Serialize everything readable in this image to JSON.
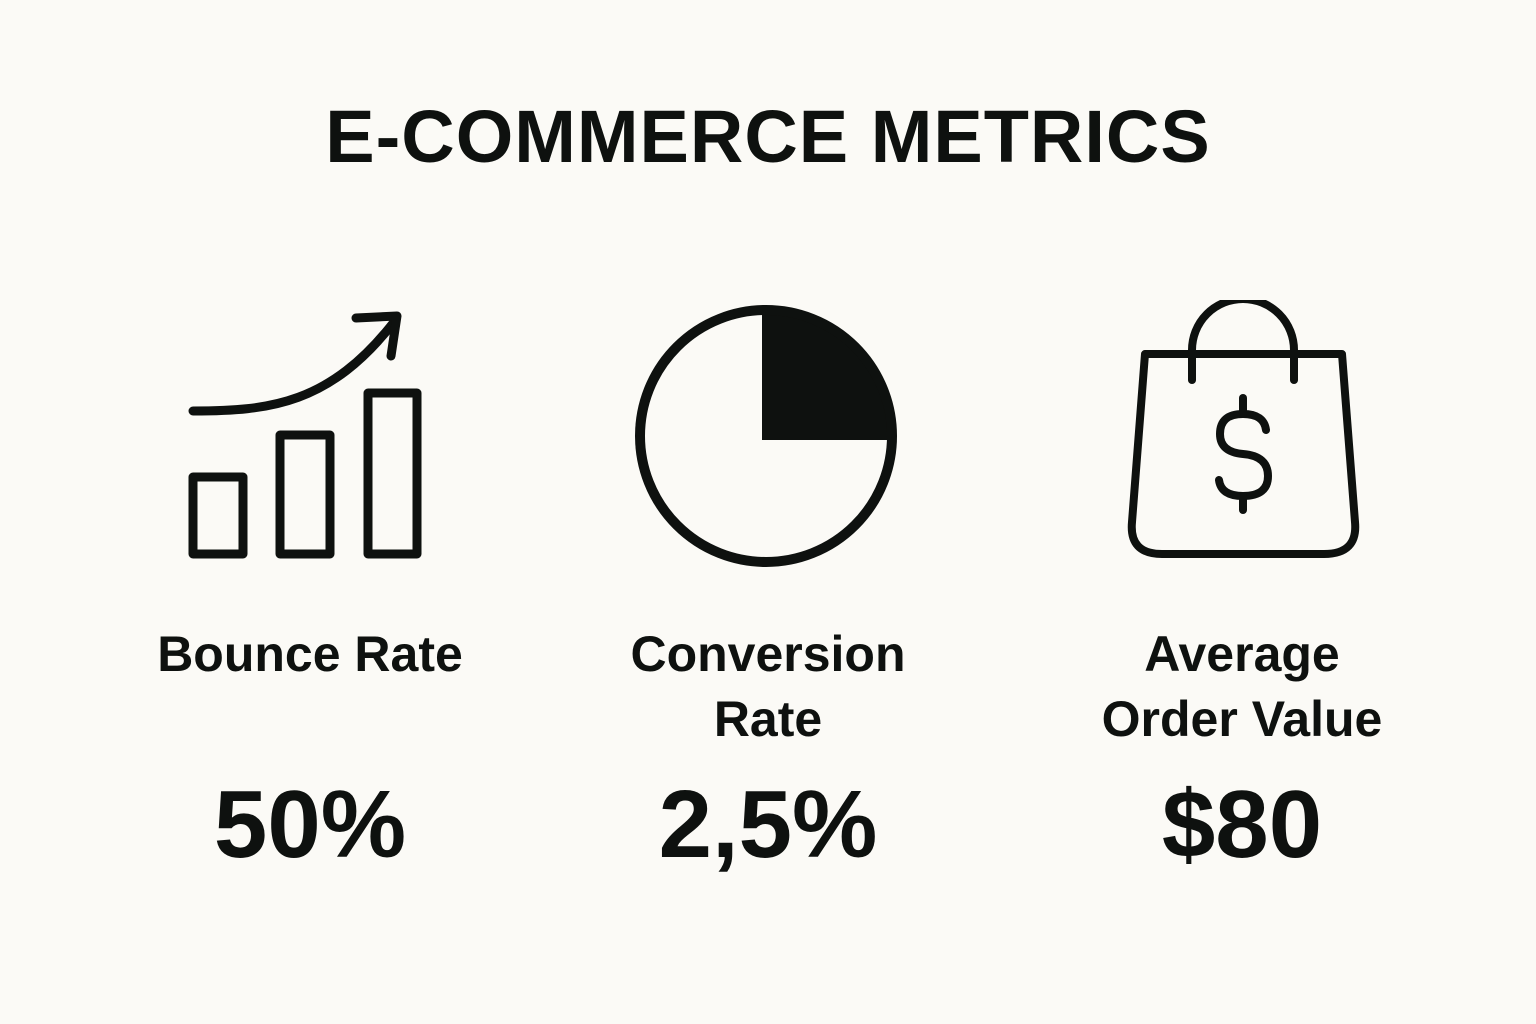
{
  "title": "E-COMMERCE METRICS",
  "metrics": [
    {
      "icon": "bar-chart-trend-up-icon",
      "label_lines": [
        "Bounce Rate"
      ],
      "value": "50%"
    },
    {
      "icon": "pie-chart-icon",
      "label_lines": [
        "Conversion",
        "Rate"
      ],
      "value": "2,5%"
    },
    {
      "icon": "shopping-bag-dollar-icon",
      "label_lines": [
        "Average",
        "Order Value"
      ],
      "value": "$80"
    }
  ],
  "colors": {
    "background": "#fbfaf6",
    "ink": "#0e110f"
  }
}
